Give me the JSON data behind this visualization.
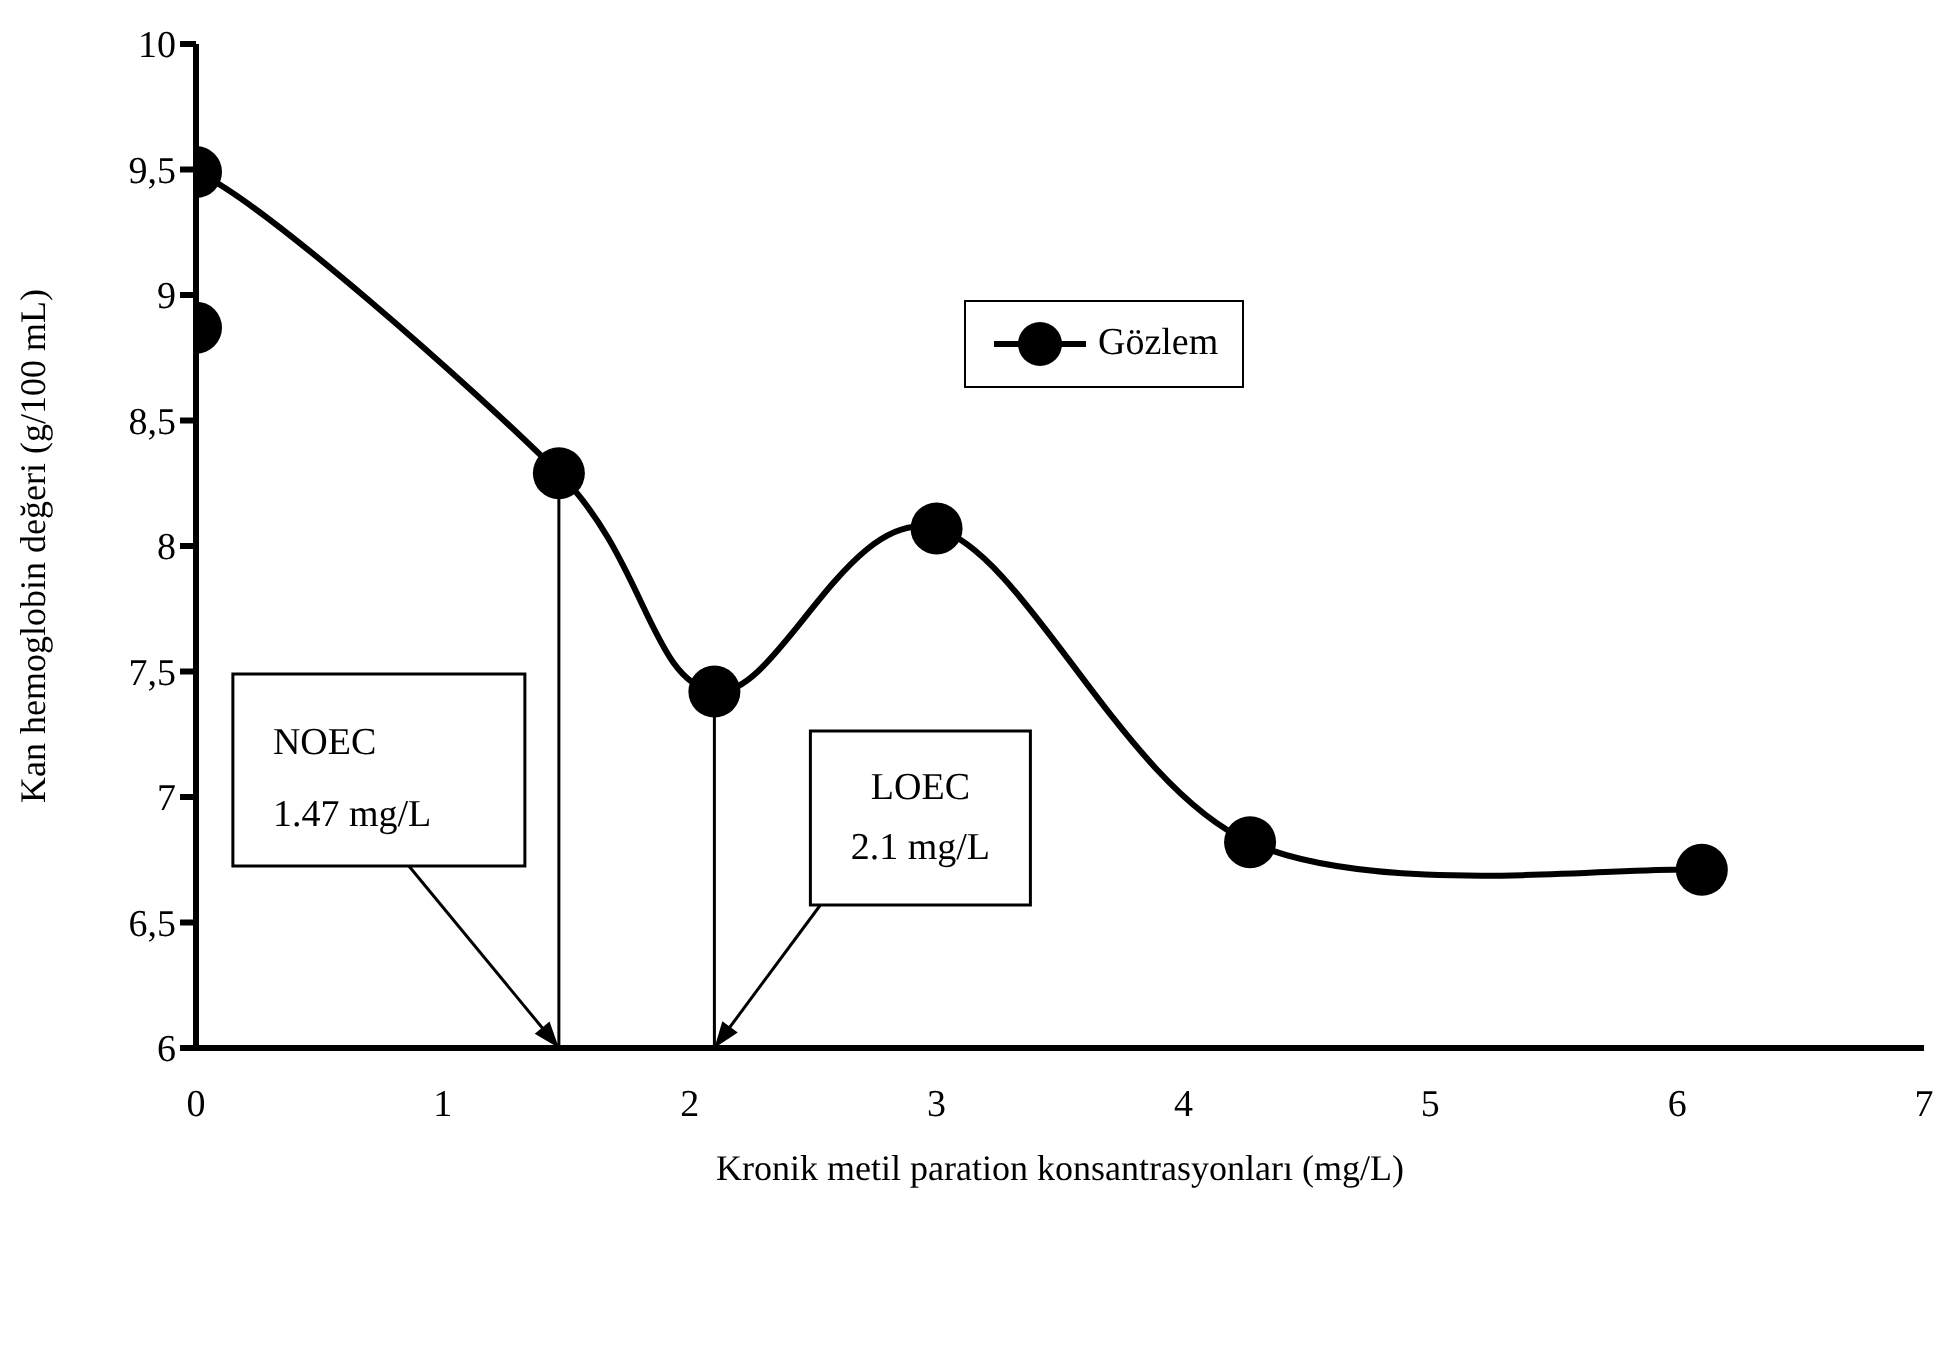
{
  "chart_data": {
    "type": "line",
    "xlabel": "Kronik metil paration  konsantrasyonları (mg/L)",
    "ylabel": "Kan hemoglobin değeri (g/100 mL)",
    "x": [
      0,
      0,
      1.47,
      2.1,
      3,
      4.27,
      6.1
    ],
    "series": [
      {
        "name": "Gözlem",
        "color": "#000000",
        "values": [
          8.87,
          9.49,
          8.29,
          7.42,
          8.07,
          6.82,
          6.71
        ]
      }
    ],
    "xlim": [
      0,
      7
    ],
    "xticks": [
      0,
      1,
      2,
      3,
      4,
      5,
      6,
      7
    ],
    "ylim": [
      6,
      10
    ],
    "yticks": [
      {
        "value": 6,
        "label": "6"
      },
      {
        "value": 6.5,
        "label": "6,5"
      },
      {
        "value": 7,
        "label": "7"
      },
      {
        "value": 7.5,
        "label": "7,5"
      },
      {
        "value": 8,
        "label": "8"
      },
      {
        "value": 8.5,
        "label": "8,5"
      },
      {
        "value": 9,
        "label": "9"
      },
      {
        "value": 9.5,
        "label": "9,5"
      },
      {
        "value": 10,
        "label": "10"
      }
    ],
    "ref_lines": [
      {
        "axis": "x",
        "value": 1.47,
        "color": "#000000"
      },
      {
        "axis": "x",
        "value": 2.1,
        "color": "#000000"
      }
    ],
    "annotations": [
      {
        "text": "NOEC\n1.47 mg/L",
        "x": 1.47,
        "y": 6
      },
      {
        "text": "LOEC\n2.1 mg/L",
        "x": 2.1,
        "y": 6
      }
    ],
    "grid": false,
    "legend": "top right",
    "marker": "circle",
    "line_style": "solid"
  }
}
